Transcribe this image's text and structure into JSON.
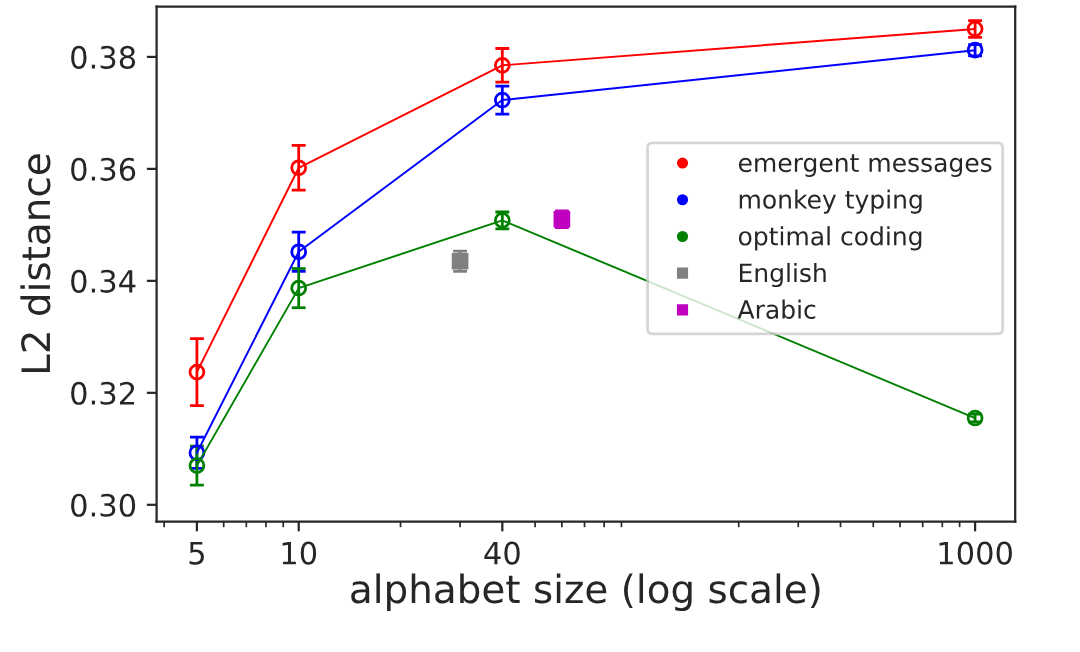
{
  "chart_data": {
    "type": "line",
    "xlabel": "alphabet size (log scale)",
    "ylabel": "L2 distance",
    "log": "x",
    "xlim": [
      3.8,
      1314
    ],
    "xticks": [
      5,
      10,
      40,
      1000
    ],
    "ylim": [
      0.297,
      0.389
    ],
    "yticks": [
      {
        "value": 0.3,
        "label": "0.30"
      },
      0.32,
      0.34,
      0.36,
      0.38
    ],
    "grid": false,
    "legend": "right",
    "marker": "circle",
    "series": [
      {
        "name": "emergent messages",
        "color": "#ff0000",
        "x": [
          5,
          10,
          40,
          1000
        ],
        "values": [
          0.3237,
          0.3602,
          0.3785,
          0.385
        ],
        "errors": [
          0.006,
          0.004,
          0.003,
          0.0015
        ]
      },
      {
        "name": "monkey typing",
        "color": "#0000ff",
        "x": [
          5,
          10,
          40,
          1000
        ],
        "values": [
          0.3093,
          0.3452,
          0.3723,
          0.3812
        ],
        "errors": [
          0.0028,
          0.0035,
          0.0025,
          0.001
        ]
      },
      {
        "name": "optimal coding",
        "color": "#008000",
        "x": [
          5,
          10,
          40,
          1000
        ],
        "values": [
          0.307,
          0.3387,
          0.3508,
          0.3155
        ],
        "errors": [
          0.0035,
          0.0035,
          0.0015,
          0.0007
        ]
      },
      {
        "name": "English",
        "type": "scatter",
        "marker": "square",
        "color": "#808080",
        "x": [
          30
        ],
        "values": [
          0.3435
        ],
        "errors": [
          0.0018
        ]
      },
      {
        "name": "Arabic",
        "type": "scatter",
        "marker": "square",
        "color": "#bf00bf",
        "x": [
          60
        ],
        "values": [
          0.351
        ],
        "errors": [
          0.0015
        ]
      }
    ]
  }
}
